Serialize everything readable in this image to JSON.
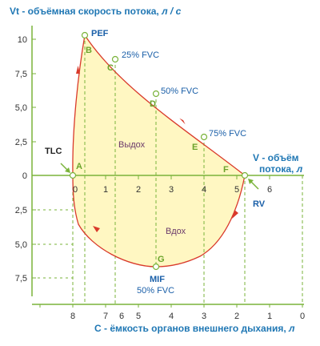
{
  "y_axis": {
    "title_prefix": "Vt",
    "title_rest": " - объёмная скорость потока, ",
    "title_unit": "л / с",
    "ticks_top": [
      "10",
      "7,5",
      "5,0",
      "2,5",
      "0"
    ],
    "ticks_bottom": [
      "2,5",
      "5,0",
      "7,5"
    ]
  },
  "x_axis": {
    "ticks": [
      "0",
      "1",
      "2",
      "3",
      "4",
      "5",
      "6"
    ],
    "label_line1": "V - объём",
    "label_line2_a": "потока, ",
    "label_line2_unit": "л"
  },
  "bottom_axis": {
    "ticks": [
      "8",
      "7",
      "6",
      "5",
      "4",
      "3",
      "2",
      "1",
      "0"
    ],
    "label_a": "С - ёмкость органов внешнего дыхания, ",
    "label_unit": "л"
  },
  "points": {
    "pef": "PEF",
    "tlc": "TLC",
    "rv": "RV",
    "mif": "MIF",
    "mif_fvc": "50% FVC",
    "fvc25": "25% FVC",
    "fvc50": "50% FVC",
    "fvc75": "75% FVC"
  },
  "letters": [
    "A",
    "B",
    "C",
    "D",
    "E",
    "F",
    "G"
  ],
  "regions": {
    "exhale": "Выдох",
    "inhale": "Вдох"
  },
  "colors": {
    "curve": "#d93a2b",
    "fill": "#fff7c2",
    "grid": "#7ab33a",
    "axis_text": "#1f77b4",
    "letter": "#6aa32a"
  }
}
